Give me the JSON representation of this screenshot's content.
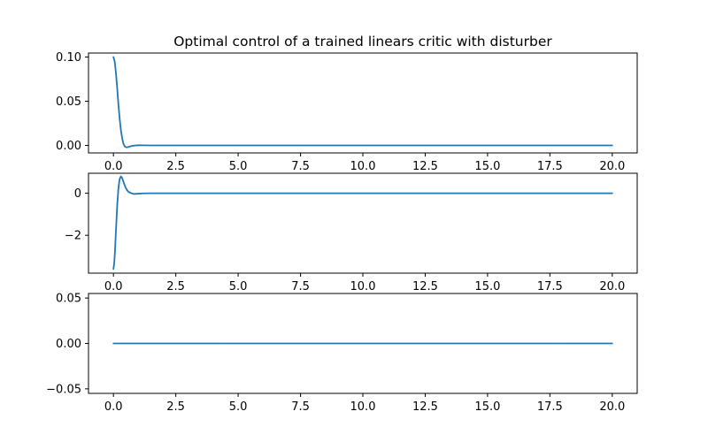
{
  "chart_data": {
    "title": "Optimal control of a trained linears critic with disturber",
    "line_color": "#1f77b4",
    "panels": [
      {
        "type": "line",
        "xlim": [
          -1.0,
          21.0
        ],
        "ylim": [
          -0.0085,
          0.1045
        ],
        "grid": false,
        "xticks": [
          0.0,
          2.5,
          5.0,
          7.5,
          10.0,
          12.5,
          15.0,
          17.5,
          20.0
        ],
        "xtick_labels": [
          "0.0",
          "2.5",
          "5.0",
          "7.5",
          "10.0",
          "12.5",
          "15.0",
          "17.5",
          "20.0"
        ],
        "yticks": [
          0.0,
          0.05,
          0.1
        ],
        "ytick_labels": [
          "0.00",
          "0.05",
          "0.10"
        ],
        "x": [
          0.0,
          0.05,
          0.1,
          0.15,
          0.2,
          0.25,
          0.3,
          0.35,
          0.4,
          0.45,
          0.5,
          0.55,
          0.6,
          0.7,
          0.8,
          0.9,
          1.0,
          1.2,
          1.5,
          2.0,
          5.0,
          10.0,
          15.0,
          20.0
        ],
        "y": [
          0.1,
          0.095,
          0.082,
          0.065,
          0.046,
          0.03,
          0.017,
          0.008,
          0.002,
          -0.001,
          -0.002,
          -0.0021,
          -0.0018,
          -0.0009,
          -0.0003,
          0.0,
          0.0002,
          0.0001,
          0.0,
          0.0,
          0.0,
          0.0,
          0.0,
          0.0
        ]
      },
      {
        "type": "line",
        "xlim": [
          -1.0,
          21.0
        ],
        "ylim": [
          -3.8,
          0.95
        ],
        "grid": false,
        "xticks": [
          0.0,
          2.5,
          5.0,
          7.5,
          10.0,
          12.5,
          15.0,
          17.5,
          20.0
        ],
        "xtick_labels": [
          "0.0",
          "2.5",
          "5.0",
          "7.5",
          "10.0",
          "12.5",
          "15.0",
          "17.5",
          "20.0"
        ],
        "yticks": [
          -2,
          0
        ],
        "ytick_labels": [
          "−2",
          "0"
        ],
        "x": [
          0.0,
          0.03,
          0.06,
          0.1,
          0.15,
          0.2,
          0.25,
          0.3,
          0.35,
          0.4,
          0.45,
          0.5,
          0.55,
          0.6,
          0.7,
          0.8,
          0.9,
          1.0,
          1.2,
          1.5,
          2.0,
          5.0,
          10.0,
          15.0,
          20.0
        ],
        "y": [
          -3.6,
          -3.35,
          -2.8,
          -1.8,
          -0.6,
          0.25,
          0.68,
          0.8,
          0.72,
          0.55,
          0.38,
          0.24,
          0.14,
          0.07,
          0.01,
          -0.03,
          -0.03,
          -0.02,
          -0.005,
          0.0,
          0.0,
          0.0,
          0.0,
          0.0,
          0.0
        ]
      },
      {
        "type": "line",
        "xlim": [
          -1.0,
          21.0
        ],
        "ylim": [
          -0.055,
          0.055
        ],
        "grid": false,
        "xticks": [
          0.0,
          2.5,
          5.0,
          7.5,
          10.0,
          12.5,
          15.0,
          17.5,
          20.0
        ],
        "xtick_labels": [
          "0.0",
          "2.5",
          "5.0",
          "7.5",
          "10.0",
          "12.5",
          "15.0",
          "17.5",
          "20.0"
        ],
        "yticks": [
          -0.05,
          0.0,
          0.05
        ],
        "ytick_labels": [
          "−0.05",
          "0.00",
          "0.05"
        ],
        "x": [
          0.0,
          20.0
        ],
        "y": [
          0.0,
          0.0
        ]
      }
    ]
  }
}
